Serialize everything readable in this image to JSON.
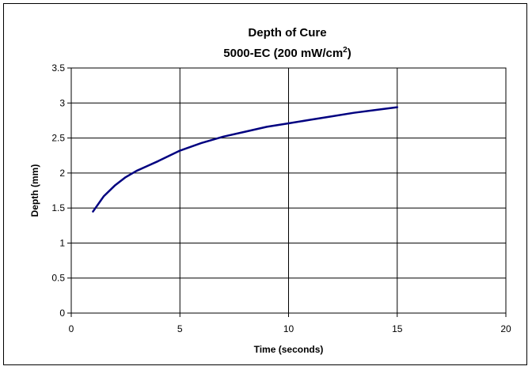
{
  "chart_data": {
    "type": "line",
    "title": "Depth of Cure",
    "subtitle_main": "5000-EC (200 mW/cm",
    "subtitle_sup": "2",
    "subtitle_end": ")",
    "xlabel": "Time (seconds)",
    "ylabel": "Depth (mm)",
    "xlim": [
      0,
      20
    ],
    "ylim": [
      0,
      3.5
    ],
    "x_ticks": [
      "0",
      "5",
      "10",
      "15",
      "20"
    ],
    "y_ticks": [
      "0",
      "0.5",
      "1",
      "1.5",
      "2",
      "2.5",
      "3",
      "3.5"
    ],
    "grid": true,
    "line_color": "#000080",
    "series": [
      {
        "x": [
          1,
          1.5,
          2,
          2.5,
          3,
          3.5,
          4,
          5,
          6,
          7,
          8,
          9,
          10,
          11,
          12,
          13,
          14,
          15
        ],
        "y": [
          1.45,
          1.67,
          1.82,
          1.94,
          2.03,
          2.1,
          2.17,
          2.32,
          2.43,
          2.52,
          2.59,
          2.66,
          2.71,
          2.76,
          2.81,
          2.86,
          2.9,
          2.94
        ]
      }
    ]
  }
}
